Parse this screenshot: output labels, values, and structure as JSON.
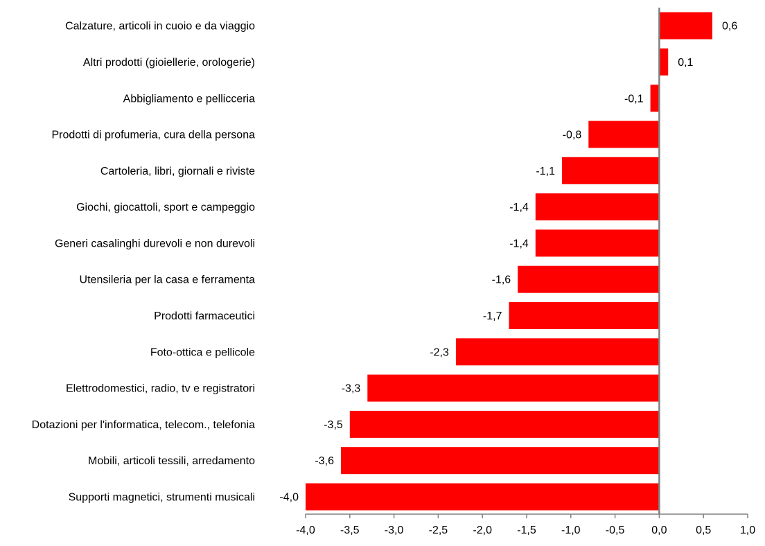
{
  "chart_data": {
    "type": "bar",
    "orientation": "horizontal",
    "categories": [
      "Calzature, articoli in cuoio e da viaggio",
      "Altri prodotti (gioiellerie, orologerie)",
      "Abbigliamento e pellicceria",
      "Prodotti di profumeria, cura della persona",
      "Cartoleria, libri, giornali e riviste",
      "Giochi, giocattoli, sport e campeggio",
      "Generi casalinghi durevoli e non durevoli",
      "Utensileria per la casa e ferramenta",
      "Prodotti farmaceutici",
      "Foto-ottica e pellicole",
      "Elettrodomestici, radio, tv e registratori",
      "Dotazioni per l'informatica, telecom., telefonia",
      "Mobili, articoli tessili, arredamento",
      "Supporti magnetici, strumenti  musicali"
    ],
    "values": [
      0.6,
      0.1,
      -0.1,
      -0.8,
      -1.1,
      -1.4,
      -1.4,
      -1.6,
      -1.7,
      -2.3,
      -3.3,
      -3.5,
      -3.6,
      -4.0
    ],
    "value_labels": [
      "0,6",
      "0,1",
      "-0,1",
      "-0,8",
      "-1,1",
      "-1,4",
      "-1,4",
      "-1,6",
      "-1,7",
      "-2,3",
      "-3,3",
      "-3,5",
      "-3,6",
      "-4,0"
    ],
    "xlim": [
      -4.0,
      1.0
    ],
    "x_ticks": [
      -4.0,
      -3.5,
      -3.0,
      -2.5,
      -2.0,
      -1.5,
      -1.0,
      -0.5,
      0.0,
      0.5,
      1.0
    ],
    "x_tick_labels": [
      "-4,0",
      "-3,5",
      "-3,0",
      "-2,5",
      "-2,0",
      "-1,5",
      "-1,0",
      "-0,5",
      "0,0",
      "0,5",
      "1,0"
    ],
    "title": "",
    "xlabel": "",
    "ylabel": "",
    "grid": false,
    "legend": "none",
    "colors": {
      "bar": "#ff0000",
      "zero_axis": "#808080",
      "axis": "#808080"
    }
  }
}
